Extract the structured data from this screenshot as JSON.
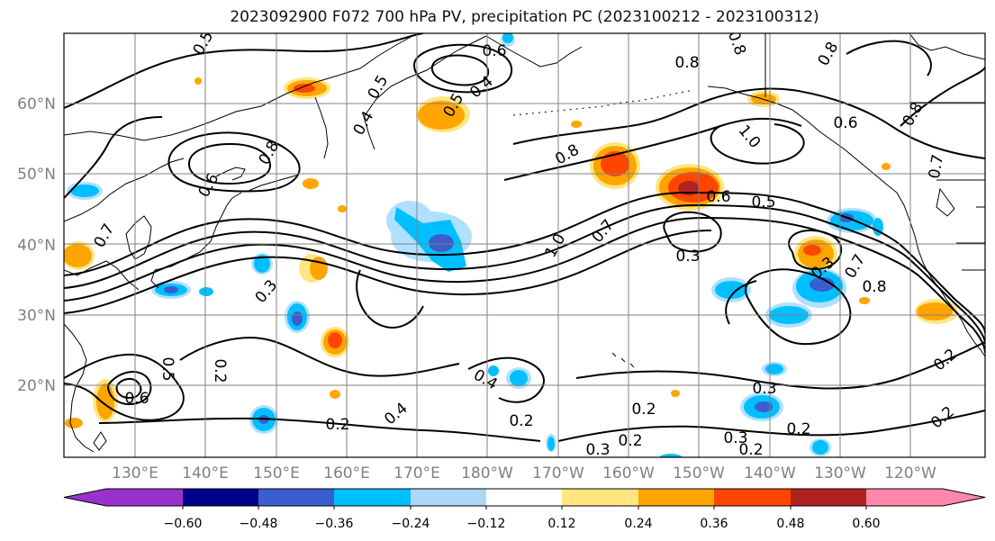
{
  "title": "2023092900 F072 700 hPa PV, precipitation PC (2023100212 - 2023100312)",
  "map": {
    "lat_labels": [
      "60°N",
      "50°N",
      "40°N",
      "30°N",
      "20°N"
    ],
    "lon_labels": [
      "130°E",
      "140°E",
      "150°E",
      "160°E",
      "170°E",
      "180°W",
      "170°W",
      "160°W",
      "150°W",
      "140°W",
      "130°W",
      "120°W"
    ],
    "contour_labels": [
      {
        "text": "0.5"
      },
      {
        "text": "0.6"
      },
      {
        "text": "0.4"
      },
      {
        "text": "0.5"
      },
      {
        "text": "0.8"
      },
      {
        "text": "0.8"
      },
      {
        "text": "0.5"
      },
      {
        "text": "0.4"
      },
      {
        "text": "0.6"
      },
      {
        "text": "0.8"
      },
      {
        "text": "0.8"
      },
      {
        "text": "1.0"
      },
      {
        "text": "0.6"
      },
      {
        "text": "0.7"
      },
      {
        "text": "0.8"
      },
      {
        "text": "0.7"
      },
      {
        "text": "0.3"
      },
      {
        "text": "0.8"
      },
      {
        "text": "0.6"
      },
      {
        "text": "0.5"
      },
      {
        "text": "1.0"
      },
      {
        "text": "0.7"
      },
      {
        "text": "0.3"
      },
      {
        "text": "0.3"
      },
      {
        "text": "0.7"
      },
      {
        "text": "0.8"
      },
      {
        "text": "0.4"
      },
      {
        "text": "0.2"
      },
      {
        "text": "0.5"
      },
      {
        "text": "0.6"
      },
      {
        "text": "0.2"
      },
      {
        "text": "0.4"
      },
      {
        "text": "0.2"
      },
      {
        "text": "0.3"
      },
      {
        "text": "0.2"
      },
      {
        "text": "0.2"
      },
      {
        "text": "0.3"
      },
      {
        "text": "0.3"
      },
      {
        "text": "0.2"
      },
      {
        "text": "0.2"
      },
      {
        "text": "0.2"
      },
      {
        "text": "0.2"
      }
    ]
  },
  "colorbar": {
    "tick_labels": [
      "−0.60",
      "−0.48",
      "−0.36",
      "−0.24",
      "−0.12",
      "0.12",
      "0.24",
      "0.36",
      "0.48",
      "0.60"
    ],
    "colors": [
      "#9932cc",
      "#00008b",
      "#3a5fcd",
      "#00bfff",
      "#add8f7",
      "#ffffff",
      "#ffe680",
      "#ffa500",
      "#ff4500",
      "#b22222",
      "#ff88aa"
    ]
  },
  "colors": {
    "light_blue": "#b0e0ff",
    "sky_blue": "#00bfff",
    "royal_blue": "#3a5fcd",
    "pale_yellow": "#ffe680",
    "orange": "#ffa500",
    "red_orange": "#ff4500",
    "dark_red": "#b22222",
    "gridline": "#808080",
    "axis_label": "#808080"
  }
}
